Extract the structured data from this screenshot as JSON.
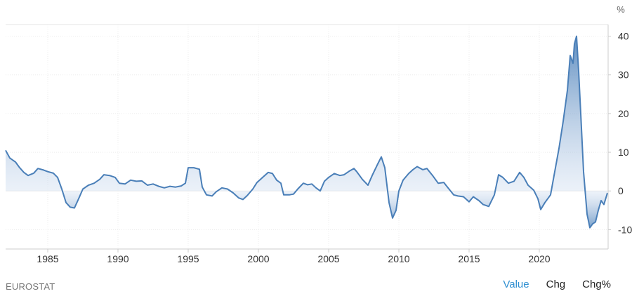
{
  "chart_data": {
    "type": "area",
    "unit": "%",
    "ylim": [
      -15,
      43
    ],
    "xlim": [
      1982,
      2024.9
    ],
    "y_ticks": [
      40,
      30,
      20,
      10,
      0,
      -10
    ],
    "x_ticks": [
      "1985",
      "1990",
      "1995",
      "2000",
      "2005",
      "2010",
      "2015",
      "2020"
    ],
    "grid": true,
    "color": "#4a7fb8",
    "points": [
      [
        1982.0,
        10.5
      ],
      [
        1982.3,
        8.5
      ],
      [
        1982.7,
        7.5
      ],
      [
        1983.0,
        6.0
      ],
      [
        1983.3,
        4.8
      ],
      [
        1983.6,
        4.0
      ],
      [
        1984.0,
        4.6
      ],
      [
        1984.3,
        5.8
      ],
      [
        1984.7,
        5.4
      ],
      [
        1985.0,
        5.0
      ],
      [
        1985.4,
        4.6
      ],
      [
        1985.7,
        3.5
      ],
      [
        1986.0,
        0.5
      ],
      [
        1986.3,
        -3.0
      ],
      [
        1986.6,
        -4.2
      ],
      [
        1986.9,
        -4.4
      ],
      [
        1987.2,
        -2.0
      ],
      [
        1987.5,
        0.5
      ],
      [
        1987.9,
        1.5
      ],
      [
        1988.3,
        2.0
      ],
      [
        1988.7,
        3.0
      ],
      [
        1989.0,
        4.2
      ],
      [
        1989.4,
        4.0
      ],
      [
        1989.8,
        3.5
      ],
      [
        1990.1,
        2.0
      ],
      [
        1990.5,
        1.8
      ],
      [
        1990.9,
        2.8
      ],
      [
        1991.3,
        2.5
      ],
      [
        1991.7,
        2.6
      ],
      [
        1992.1,
        1.5
      ],
      [
        1992.5,
        1.8
      ],
      [
        1992.9,
        1.2
      ],
      [
        1993.3,
        0.8
      ],
      [
        1993.7,
        1.2
      ],
      [
        1994.1,
        1.0
      ],
      [
        1994.5,
        1.3
      ],
      [
        1994.8,
        2.0
      ],
      [
        1995.0,
        6.0
      ],
      [
        1995.4,
        6.0
      ],
      [
        1995.8,
        5.6
      ],
      [
        1996.0,
        1.0
      ],
      [
        1996.3,
        -1.0
      ],
      [
        1996.7,
        -1.3
      ],
      [
        1997.0,
        -0.2
      ],
      [
        1997.4,
        0.8
      ],
      [
        1997.8,
        0.5
      ],
      [
        1998.2,
        -0.5
      ],
      [
        1998.6,
        -1.8
      ],
      [
        1998.9,
        -2.2
      ],
      [
        1999.2,
        -1.2
      ],
      [
        1999.6,
        0.5
      ],
      [
        1999.9,
        2.2
      ],
      [
        2000.3,
        3.5
      ],
      [
        2000.7,
        4.8
      ],
      [
        2001.0,
        4.5
      ],
      [
        2001.3,
        2.8
      ],
      [
        2001.6,
        2.0
      ],
      [
        2001.8,
        -1.0
      ],
      [
        2002.2,
        -1.0
      ],
      [
        2002.5,
        -0.8
      ],
      [
        2002.8,
        0.5
      ],
      [
        2003.2,
        2.0
      ],
      [
        2003.5,
        1.6
      ],
      [
        2003.8,
        1.8
      ],
      [
        2004.1,
        0.8
      ],
      [
        2004.4,
        0.0
      ],
      [
        2004.7,
        2.5
      ],
      [
        2005.0,
        3.5
      ],
      [
        2005.4,
        4.5
      ],
      [
        2005.8,
        4.0
      ],
      [
        2006.1,
        4.2
      ],
      [
        2006.5,
        5.2
      ],
      [
        2006.8,
        5.8
      ],
      [
        2007.0,
        5.0
      ],
      [
        2007.4,
        3.0
      ],
      [
        2007.8,
        1.5
      ],
      [
        2008.1,
        4.0
      ],
      [
        2008.5,
        7.0
      ],
      [
        2008.75,
        8.8
      ],
      [
        2009.0,
        6.0
      ],
      [
        2009.3,
        -3.0
      ],
      [
        2009.55,
        -7.0
      ],
      [
        2009.8,
        -5.0
      ],
      [
        2010.0,
        0.0
      ],
      [
        2010.3,
        2.8
      ],
      [
        2010.7,
        4.5
      ],
      [
        2011.0,
        5.5
      ],
      [
        2011.3,
        6.3
      ],
      [
        2011.7,
        5.5
      ],
      [
        2012.0,
        5.8
      ],
      [
        2012.4,
        4.0
      ],
      [
        2012.8,
        2.0
      ],
      [
        2013.2,
        2.2
      ],
      [
        2013.5,
        0.8
      ],
      [
        2013.9,
        -1.0
      ],
      [
        2014.2,
        -1.3
      ],
      [
        2014.6,
        -1.5
      ],
      [
        2015.0,
        -2.8
      ],
      [
        2015.3,
        -1.5
      ],
      [
        2015.7,
        -2.5
      ],
      [
        2016.0,
        -3.5
      ],
      [
        2016.4,
        -4.0
      ],
      [
        2016.8,
        -1.0
      ],
      [
        2017.1,
        4.2
      ],
      [
        2017.4,
        3.5
      ],
      [
        2017.8,
        2.0
      ],
      [
        2018.2,
        2.5
      ],
      [
        2018.6,
        4.8
      ],
      [
        2018.9,
        3.5
      ],
      [
        2019.2,
        1.5
      ],
      [
        2019.6,
        0.2
      ],
      [
        2019.9,
        -2.0
      ],
      [
        2020.1,
        -4.8
      ],
      [
        2020.4,
        -3.0
      ],
      [
        2020.8,
        -1.0
      ],
      [
        2021.0,
        3.0
      ],
      [
        2021.4,
        11.0
      ],
      [
        2021.7,
        18.0
      ],
      [
        2022.0,
        26.0
      ],
      [
        2022.2,
        35.0
      ],
      [
        2022.4,
        33.0
      ],
      [
        2022.5,
        38.0
      ],
      [
        2022.65,
        40.0
      ],
      [
        2022.8,
        31.0
      ],
      [
        2022.95,
        20.0
      ],
      [
        2023.15,
        5.0
      ],
      [
        2023.4,
        -6.0
      ],
      [
        2023.6,
        -9.5
      ],
      [
        2023.8,
        -8.5
      ],
      [
        2024.0,
        -8.0
      ],
      [
        2024.2,
        -5.0
      ],
      [
        2024.4,
        -2.5
      ],
      [
        2024.6,
        -3.5
      ],
      [
        2024.85,
        -0.5
      ]
    ]
  },
  "footer": {
    "source": "EUROSTAT",
    "toggles": [
      "Value",
      "Chg",
      "Chg%"
    ],
    "active_toggle": "Value"
  }
}
